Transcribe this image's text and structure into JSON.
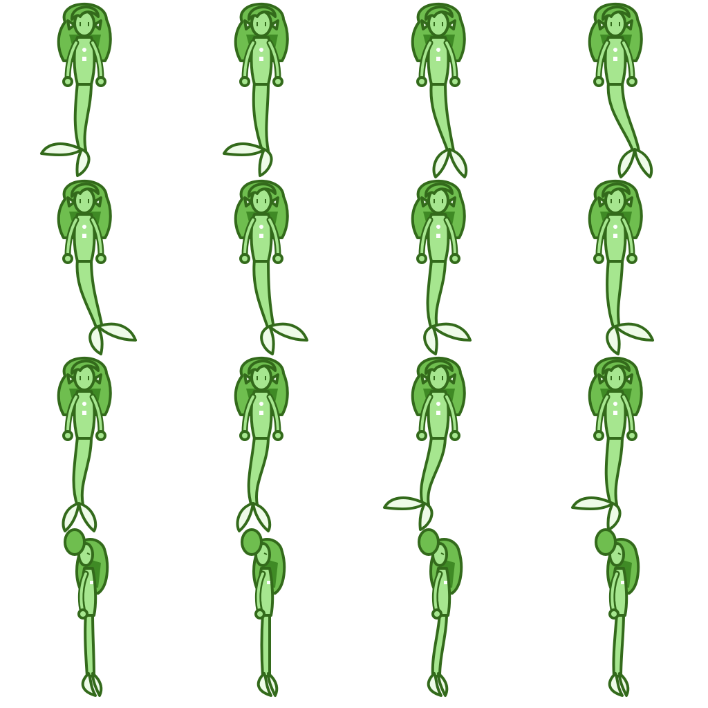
{
  "sheet": {
    "subject": "green-mermaid",
    "rows": 4,
    "cols": 4,
    "palette": {
      "outline": "#336a1b",
      "hair": "#6fbe4f",
      "hair_shadow": "#3f8a25",
      "skin": "#a6e68f",
      "tail": "#a6e68f",
      "fin": "#eefbe8",
      "accent": "#ffffff"
    },
    "frames": [
      {
        "row": 0,
        "col": 0,
        "view": "front",
        "fin_dir": "left-spread",
        "tail_sway": -6
      },
      {
        "row": 0,
        "col": 1,
        "view": "front",
        "fin_dir": "left-spread",
        "tail_sway": -2
      },
      {
        "row": 0,
        "col": 2,
        "view": "front",
        "fin_dir": "split",
        "tail_sway": 4
      },
      {
        "row": 0,
        "col": 3,
        "view": "front",
        "fin_dir": "split",
        "tail_sway": 10
      },
      {
        "row": 1,
        "col": 0,
        "view": "front",
        "fin_dir": "right-spread",
        "tail_sway": 6
      },
      {
        "row": 1,
        "col": 1,
        "view": "front",
        "fin_dir": "right-spread",
        "tail_sway": 2
      },
      {
        "row": 1,
        "col": 2,
        "view": "front",
        "fin_dir": "right-spread",
        "tail_sway": -8
      },
      {
        "row": 1,
        "col": 3,
        "view": "front",
        "fin_dir": "right-spread",
        "tail_sway": -4
      },
      {
        "row": 2,
        "col": 0,
        "view": "front",
        "fin_dir": "split",
        "tail_sway": -8
      },
      {
        "row": 2,
        "col": 1,
        "view": "front",
        "fin_dir": "split",
        "tail_sway": -10
      },
      {
        "row": 2,
        "col": 2,
        "view": "front",
        "fin_dir": "left-spread",
        "tail_sway": -14
      },
      {
        "row": 2,
        "col": 3,
        "view": "front",
        "fin_dir": "left-spread",
        "tail_sway": -6
      },
      {
        "row": 3,
        "col": 0,
        "view": "side",
        "fin_dir": "down",
        "tail_sway": 8
      },
      {
        "row": 3,
        "col": 1,
        "view": "side",
        "fin_dir": "down",
        "tail_sway": 6
      },
      {
        "row": 3,
        "col": 2,
        "view": "side",
        "fin_dir": "down",
        "tail_sway": -4
      },
      {
        "row": 3,
        "col": 3,
        "view": "side",
        "fin_dir": "down",
        "tail_sway": 2
      }
    ]
  }
}
